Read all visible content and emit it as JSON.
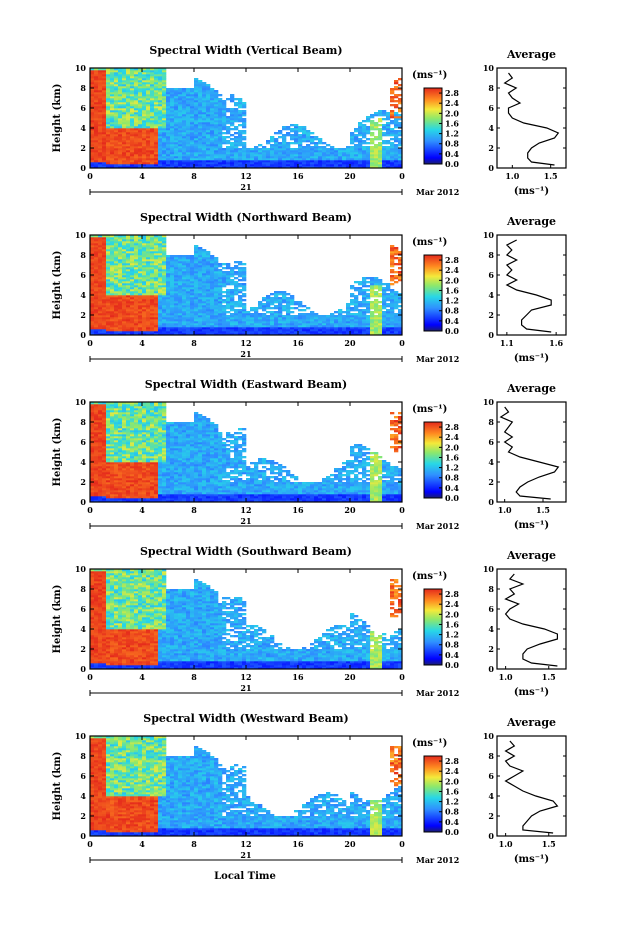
{
  "figure": {
    "xlabel": "Local Time",
    "date_label": "Mar 2012",
    "day_label": "21",
    "colorbar_unit": "(ms⁻¹)",
    "colorbar_ticks": [
      "0.0",
      "0.4",
      "0.8",
      "1.2",
      "1.6",
      "2.0",
      "2.4",
      "2.8"
    ],
    "profile_title": "Average",
    "profile_xlabel": "(ms⁻¹)",
    "ylabel": "Height (km)"
  },
  "chart_data": [
    {
      "type": "heatmap",
      "title": "Spectral Width (Vertical Beam)",
      "x_ticks": [
        "0",
        "4",
        "8",
        "12",
        "16",
        "20",
        "0"
      ],
      "y_ticks": [
        "0",
        "2",
        "4",
        "6",
        "8",
        "10"
      ],
      "xlim": [
        0,
        24
      ],
      "ylim": [
        0,
        10
      ],
      "clim": [
        0.0,
        3.0
      ],
      "profile": {
        "x_ticks": [
          "1.0",
          "1.5"
        ],
        "xlim": [
          0.8,
          1.7
        ],
        "heights": [
          0.3,
          0.6,
          1.0,
          1.5,
          2.0,
          2.5,
          3.0,
          3.5,
          4.0,
          4.5,
          5.0,
          5.5,
          6.0,
          6.5,
          7.0,
          7.5,
          8.0,
          8.5,
          9.0,
          9.5
        ],
        "values": [
          1.55,
          1.25,
          1.2,
          1.2,
          1.25,
          1.35,
          1.55,
          1.6,
          1.45,
          1.15,
          1.0,
          0.95,
          0.95,
          1.1,
          1.0,
          0.95,
          1.05,
          0.9,
          1.0,
          0.95
        ]
      }
    },
    {
      "type": "heatmap",
      "title": "Spectral Width (Northward Beam)",
      "x_ticks": [
        "0",
        "4",
        "8",
        "12",
        "16",
        "20",
        "0"
      ],
      "y_ticks": [
        "0",
        "2",
        "4",
        "6",
        "8",
        "10"
      ],
      "xlim": [
        0,
        24
      ],
      "ylim": [
        0,
        10
      ],
      "clim": [
        0.0,
        3.0
      ],
      "profile": {
        "x_ticks": [
          "1.1",
          "1.6"
        ],
        "xlim": [
          1.0,
          1.7
        ],
        "heights": [
          0.3,
          0.6,
          1.0,
          1.5,
          2.0,
          2.5,
          3.0,
          3.5,
          4.0,
          4.5,
          5.0,
          5.5,
          6.0,
          6.5,
          7.0,
          7.5,
          8.0,
          8.5,
          9.0,
          9.5
        ],
        "values": [
          1.55,
          1.3,
          1.25,
          1.25,
          1.3,
          1.35,
          1.55,
          1.55,
          1.4,
          1.2,
          1.1,
          1.2,
          1.1,
          1.15,
          1.1,
          1.2,
          1.1,
          1.15,
          1.1,
          1.2
        ]
      }
    },
    {
      "type": "heatmap",
      "title": "Spectral Width (Eastward Beam)",
      "x_ticks": [
        "0",
        "4",
        "8",
        "12",
        "16",
        "20",
        "0"
      ],
      "y_ticks": [
        "0",
        "2",
        "4",
        "6",
        "8",
        "10"
      ],
      "xlim": [
        0,
        24
      ],
      "ylim": [
        0,
        10
      ],
      "clim": [
        0.0,
        3.0
      ],
      "profile": {
        "x_ticks": [
          "1.0",
          "1.5"
        ],
        "xlim": [
          0.9,
          1.8
        ],
        "heights": [
          0.3,
          0.6,
          1.0,
          1.5,
          2.0,
          2.5,
          3.0,
          3.5,
          4.0,
          4.5,
          5.0,
          5.5,
          6.0,
          6.5,
          7.0,
          7.5,
          8.0,
          8.5,
          9.0,
          9.5
        ],
        "values": [
          1.6,
          1.2,
          1.15,
          1.2,
          1.3,
          1.45,
          1.65,
          1.7,
          1.45,
          1.2,
          1.05,
          1.1,
          1.0,
          1.1,
          1.0,
          1.05,
          1.1,
          0.95,
          1.05,
          1.0
        ]
      }
    },
    {
      "type": "heatmap",
      "title": "Spectral Width (Southward Beam)",
      "x_ticks": [
        "0",
        "4",
        "8",
        "12",
        "16",
        "20",
        "0"
      ],
      "y_ticks": [
        "0",
        "2",
        "4",
        "6",
        "8",
        "10"
      ],
      "xlim": [
        0,
        24
      ],
      "ylim": [
        0,
        10
      ],
      "clim": [
        0.0,
        3.0
      ],
      "profile": {
        "x_ticks": [
          "1.0",
          "1.5"
        ],
        "xlim": [
          0.9,
          1.7
        ],
        "heights": [
          0.3,
          0.6,
          1.0,
          1.5,
          2.0,
          2.5,
          3.0,
          3.5,
          4.0,
          4.5,
          5.0,
          5.5,
          6.0,
          6.5,
          7.0,
          7.5,
          8.0,
          8.5,
          9.0,
          9.5
        ],
        "values": [
          1.6,
          1.3,
          1.2,
          1.2,
          1.25,
          1.4,
          1.6,
          1.6,
          1.45,
          1.2,
          1.05,
          1.0,
          1.05,
          1.15,
          1.0,
          1.1,
          1.05,
          1.2,
          1.05,
          1.1
        ]
      }
    },
    {
      "type": "heatmap",
      "title": "Spectral Width (Westward Beam)",
      "x_ticks": [
        "0",
        "4",
        "8",
        "12",
        "16",
        "20",
        "0"
      ],
      "y_ticks": [
        "0",
        "2",
        "4",
        "6",
        "8",
        "10"
      ],
      "xlim": [
        0,
        24
      ],
      "ylim": [
        0,
        10
      ],
      "clim": [
        0.0,
        3.0
      ],
      "profile": {
        "x_ticks": [
          "1.0",
          "1.5"
        ],
        "xlim": [
          0.9,
          1.7
        ],
        "heights": [
          0.3,
          0.6,
          1.0,
          1.5,
          2.0,
          2.5,
          3.0,
          3.5,
          4.0,
          4.5,
          5.0,
          5.5,
          6.0,
          6.5,
          7.0,
          7.5,
          8.0,
          8.5,
          9.0,
          9.5
        ],
        "values": [
          1.55,
          1.2,
          1.2,
          1.25,
          1.3,
          1.4,
          1.6,
          1.55,
          1.35,
          1.2,
          1.1,
          1.0,
          1.1,
          1.2,
          1.05,
          1.0,
          1.1,
          1.0,
          1.1,
          1.05
        ]
      }
    }
  ]
}
